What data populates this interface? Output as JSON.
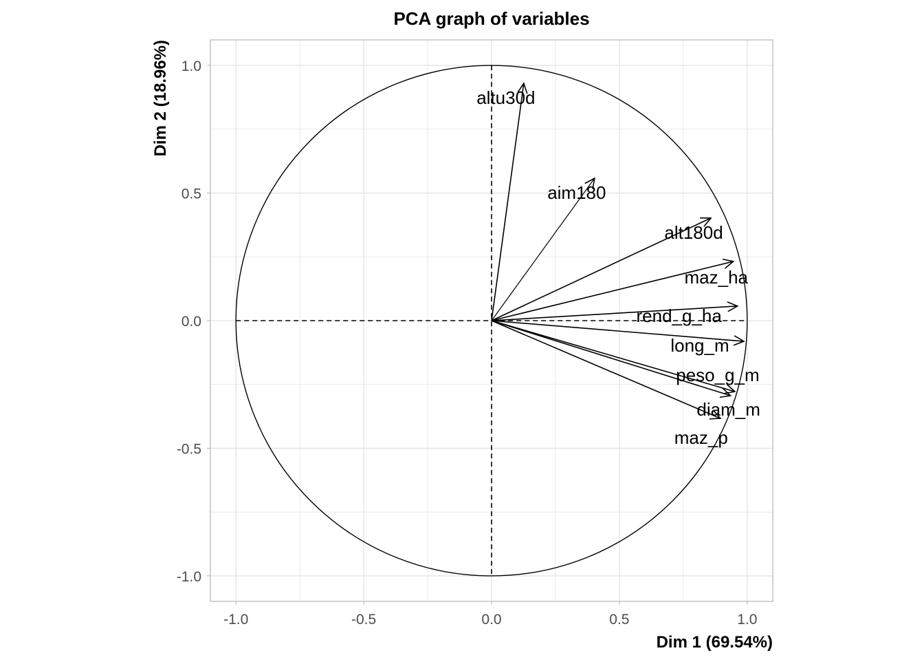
{
  "chart_data": {
    "type": "scatter",
    "subtype": "pca-correlation-circle",
    "title": "PCA graph of variables",
    "xlabel": "Dim 1 (69.54%)",
    "ylabel": "Dim 2 (18.96%)",
    "xlim": [
      -1.1,
      1.1
    ],
    "ylim": [
      -1.1,
      1.1
    ],
    "xticks": [
      -1.0,
      -0.5,
      0.0,
      0.5,
      1.0
    ],
    "yticks": [
      -1.0,
      -0.5,
      0.0,
      0.5,
      1.0
    ],
    "xtick_labels": [
      "-1.0",
      "-0.5",
      "0.0",
      "0.5",
      "1.0"
    ],
    "ytick_labels": [
      "-1.0",
      "-0.5",
      "0.0",
      "0.5",
      "1.0"
    ],
    "grid": true,
    "unit_circle": true,
    "variables": [
      {
        "name": "altu30d",
        "x": 0.126,
        "y": 0.93
      },
      {
        "name": "aim180",
        "x": 0.403,
        "y": 0.558
      },
      {
        "name": "alt180d",
        "x": 0.858,
        "y": 0.402
      },
      {
        "name": "maz_ha",
        "x": 0.946,
        "y": 0.232
      },
      {
        "name": "rend_g_ha",
        "x": 0.962,
        "y": 0.057
      },
      {
        "name": "long_m",
        "x": 0.987,
        "y": -0.081
      },
      {
        "name": "peso_g_m",
        "x": 0.952,
        "y": -0.278
      },
      {
        "name": "diam_m",
        "x": 0.935,
        "y": -0.294
      },
      {
        "name": "maz_p",
        "x": 0.895,
        "y": -0.383
      }
    ],
    "colors": {
      "arrows": "#000000",
      "grid": "#dedede",
      "panel_border": "#b3b3b3",
      "tick_text": "#4d4d4d"
    }
  }
}
